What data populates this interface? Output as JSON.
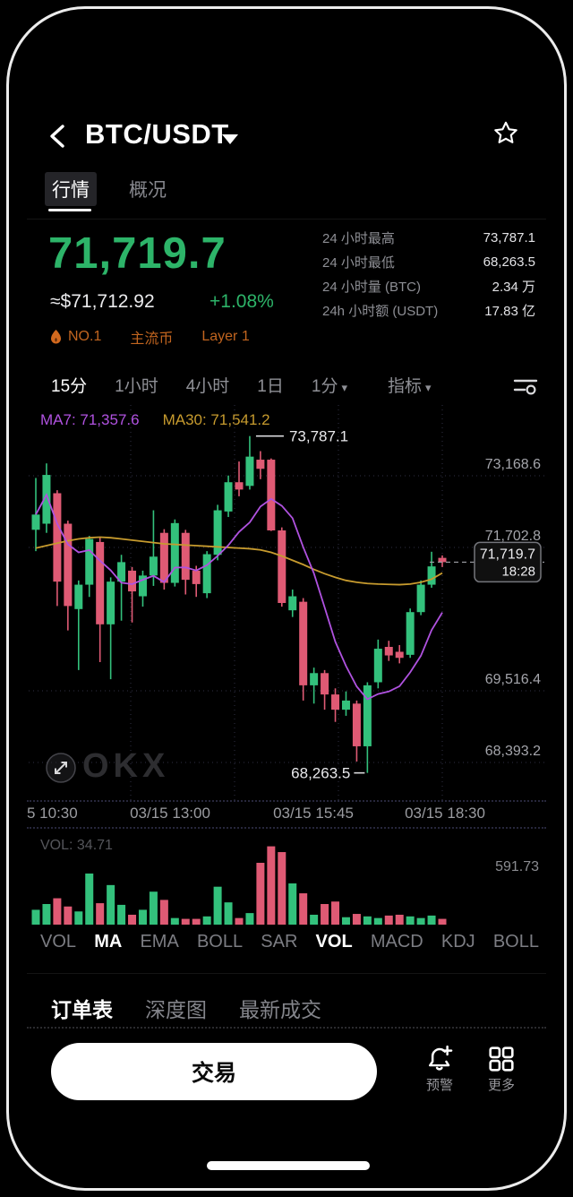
{
  "header": {
    "title": "BTC/USDT",
    "tabs": [
      {
        "label": "行情",
        "active": true
      },
      {
        "label": "概况",
        "active": false
      }
    ]
  },
  "price": {
    "last": "71,719.7",
    "fiat": "≈$71,712.92",
    "change": "+1.08%"
  },
  "stats": [
    {
      "label": "24 小时最高",
      "value": "73,787.1"
    },
    {
      "label": "24 小时最低",
      "value": "68,263.5"
    },
    {
      "label": "24 小时量 (BTC)",
      "value": "2.34 万"
    },
    {
      "label": "24h 小时额 (USDT)",
      "value": "17.83 亿"
    }
  ],
  "badges": [
    {
      "icon": "flame",
      "label": "NO.1"
    },
    {
      "label": "主流币"
    },
    {
      "label": "Layer 1"
    }
  ],
  "timeframes": [
    {
      "label": "15分",
      "active": true
    },
    {
      "label": "1小时",
      "active": false
    },
    {
      "label": "4小时",
      "active": false
    },
    {
      "label": "1日",
      "active": false
    },
    {
      "label": "1分",
      "active": false,
      "caret": true
    },
    {
      "label": "指标",
      "active": false,
      "caret": true,
      "group": "indicator"
    }
  ],
  "watermark": "OKX",
  "chart_data": {
    "type": "candlestick",
    "symbol": "BTC/USDT",
    "interval": "15分",
    "ma_labels": {
      "ma7": "MA7: 71,357.6",
      "ma30": "MA30: 71,541.2"
    },
    "y_axis": {
      "top_value": 74150,
      "bottom_value": 67950,
      "tick_labels": [
        "73,168.6",
        "71,702.8",
        "69,516.4",
        "68,393.2"
      ]
    },
    "x_axis": {
      "tick_labels": [
        "5 10:30",
        "03/15 13:00",
        "03/15 15:45",
        "03/15 18:30"
      ]
    },
    "annotations": {
      "high": {
        "text": "73,787.1",
        "index": 20,
        "value": 73787.1
      },
      "low": {
        "text": "68,263.5",
        "index": 31,
        "value": 68263.5
      }
    },
    "current": {
      "price": "71,719.7",
      "time": "18:28",
      "value": 71719.7
    },
    "candles": [
      [
        72250,
        73100,
        71900,
        72500
      ],
      [
        72350,
        73339,
        72200,
        73150
      ],
      [
        72850,
        72900,
        71000,
        71400
      ],
      [
        72350,
        72400,
        70600,
        71000
      ],
      [
        70950,
        71420,
        69950,
        71350
      ],
      [
        71350,
        72150,
        71150,
        72100
      ],
      [
        72050,
        72120,
        70080,
        70700
      ],
      [
        70700,
        71470,
        69800,
        71400
      ],
      [
        71400,
        71840,
        70760,
        71720
      ],
      [
        71580,
        71640,
        70730,
        71240
      ],
      [
        71160,
        71580,
        70990,
        71500
      ],
      [
        71500,
        72570,
        71330,
        71810
      ],
      [
        72200,
        72260,
        71270,
        71380
      ],
      [
        71380,
        72420,
        71320,
        72360
      ],
      [
        72200,
        72250,
        71190,
        71430
      ],
      [
        71580,
        71660,
        71150,
        71360
      ],
      [
        71210,
        71900,
        71130,
        71850
      ],
      [
        71840,
        72660,
        71750,
        72570
      ],
      [
        72550,
        73140,
        72460,
        73030
      ],
      [
        73030,
        73370,
        72800,
        72910
      ],
      [
        72970,
        73787.1,
        72910,
        73450
      ],
      [
        73400,
        73540,
        73080,
        73250
      ],
      [
        73400,
        73420,
        72230,
        72240
      ],
      [
        72240,
        72290,
        70990,
        71050
      ],
      [
        70930,
        71270,
        70820,
        71160
      ],
      [
        71070,
        71130,
        69450,
        69700
      ],
      [
        69700,
        69990,
        69400,
        69900
      ],
      [
        69900,
        69950,
        69300,
        69550
      ],
      [
        69550,
        69650,
        69100,
        69300
      ],
      [
        69300,
        69600,
        69200,
        69450
      ],
      [
        69400,
        69450,
        68450,
        68700
      ],
      [
        68700,
        69750,
        68263.5,
        69700
      ],
      [
        69750,
        70450,
        69650,
        70300
      ],
      [
        70330,
        70430,
        70100,
        70190
      ],
      [
        70250,
        70360,
        70060,
        70150
      ],
      [
        70200,
        70960,
        70150,
        70900
      ],
      [
        70900,
        71420,
        70850,
        71350
      ],
      [
        71350,
        71890,
        71300,
        71650
      ],
      [
        71790,
        71830,
        71640,
        71719.7
      ]
    ],
    "ma30_series": [
      71950,
      71990,
      72030,
      72070,
      72100,
      72120,
      72130,
      72120,
      72100,
      72080,
      72060,
      72040,
      72020,
      72010,
      72000,
      71990,
      71980,
      71970,
      71960,
      71950,
      71940,
      71920,
      71880,
      71820,
      71750,
      71680,
      71600,
      71530,
      71470,
      71420,
      71390,
      71370,
      71360,
      71355,
      71350,
      71360,
      71390,
      71440,
      71541
    ],
    "volume": {
      "label": "VOL: 34.71",
      "scale_max": "591.73",
      "heights": [
        0.18,
        0.25,
        0.32,
        0.22,
        0.16,
        0.62,
        0.26,
        0.48,
        0.24,
        0.12,
        0.18,
        0.4,
        0.3,
        0.08,
        0.07,
        0.07,
        0.1,
        0.46,
        0.27,
        0.08,
        0.14,
        0.75,
        0.95,
        0.88,
        0.5,
        0.38,
        0.12,
        0.25,
        0.28,
        0.09,
        0.13,
        0.1,
        0.08,
        0.11,
        0.12,
        0.1,
        0.08,
        0.11,
        0.07
      ]
    }
  },
  "indicator_tabs": [
    {
      "label": "VOL",
      "active": false
    },
    {
      "label": "MA",
      "active": true
    },
    {
      "label": "EMA",
      "active": false
    },
    {
      "label": "BOLL",
      "active": false
    },
    {
      "label": "SAR",
      "active": false
    },
    {
      "label": "VOL",
      "active": true
    },
    {
      "label": "MACD",
      "active": false
    },
    {
      "label": "KDJ",
      "active": false
    },
    {
      "label": "BOLL",
      "active": false
    }
  ],
  "bottom_tabs": [
    {
      "label": "订单表",
      "active": true
    },
    {
      "label": "深度图",
      "active": false
    },
    {
      "label": "最新成交",
      "active": false
    }
  ],
  "footer": {
    "trade_label": "交易",
    "alert_label": "预警",
    "more_label": "更多"
  },
  "colors": {
    "up": "#33c17c",
    "down": "#df5a74",
    "price_green": "#2db469",
    "ma7": "#b052e0",
    "ma30": "#c79b2e",
    "badge": "#c2651f",
    "axis_text": "#a4a5ab",
    "grid": "#2f2f45"
  }
}
